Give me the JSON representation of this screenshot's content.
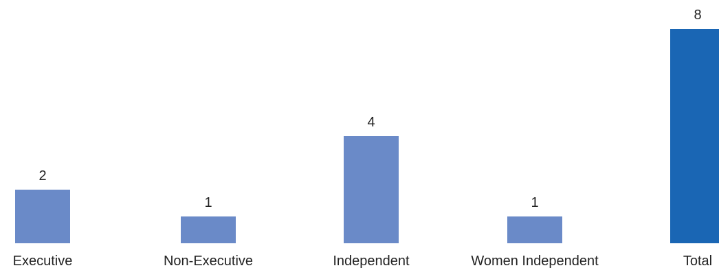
{
  "chart_data": {
    "type": "bar",
    "categories": [
      "Executive",
      "Non-Executive",
      "Independent",
      "Women Independent",
      "Total"
    ],
    "values": [
      2,
      1,
      4,
      1,
      8
    ],
    "title": "",
    "xlabel": "",
    "ylabel": "",
    "ylim": [
      0,
      8
    ],
    "grid": false,
    "legend": "none",
    "data_labels": true,
    "colors": [
      "#6a8ac8",
      "#6a8ac8",
      "#6a8ac8",
      "#6a8ac8",
      "#1a66b4"
    ]
  }
}
